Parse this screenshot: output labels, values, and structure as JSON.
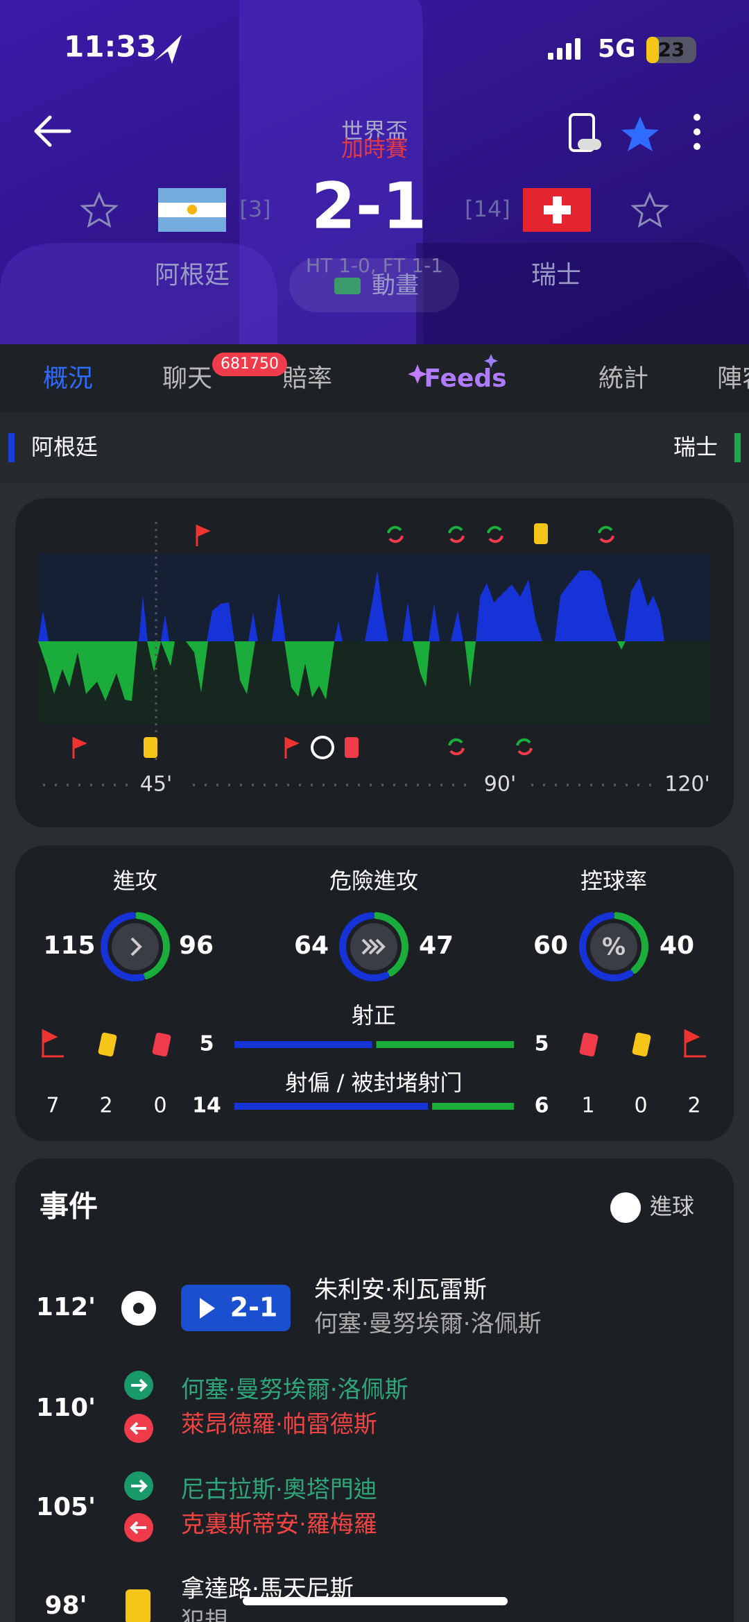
{
  "status_bar": {
    "time": "11:33",
    "network": "5G",
    "battery": "23"
  },
  "header": {
    "competition": "世界盃",
    "stage": "加時賽",
    "home_team": "阿根廷",
    "home_rank": "[3]",
    "score": "2-1",
    "away_rank": "[14]",
    "away_team": "瑞士",
    "result_detail": "HT 1-0, FT 1-1",
    "animation": "動畫"
  },
  "tabs": [
    "概況",
    "聊天",
    "賠率",
    "Feeds",
    "統計",
    "陣容"
  ],
  "chat_badge": "681750",
  "team_bar": {
    "home": "阿根廷",
    "away": "瑞士"
  },
  "timeline": {
    "marks": [
      "45'",
      "90'",
      "120'"
    ]
  },
  "stats": {
    "attack": {
      "label": "進攻",
      "home": 115,
      "away": 96
    },
    "dangerous_attack": {
      "label": "危險進攻",
      "home": 64,
      "away": 47
    },
    "possession": {
      "label": "控球率",
      "icon": "%",
      "home": 60,
      "away": 40
    },
    "shots_on_target": {
      "label": "射正",
      "home": 5,
      "away": 5
    },
    "shots_off_target": {
      "label": "射偏 / 被封堵射门",
      "home": 14,
      "away": 6
    },
    "home_corners": 7,
    "home_yellow": 2,
    "home_red": 0,
    "away_red": 1,
    "away_yellow": 0,
    "away_corners": 2
  },
  "events": {
    "title": "事件",
    "legend": "進球",
    "items": [
      {
        "minute": "112'",
        "score": "2-1",
        "player": "朱利安·利瓦雷斯",
        "assist": "何塞·曼努埃爾·洛佩斯"
      },
      {
        "minute": "110'",
        "player_in": "何塞·曼努埃爾·洛佩斯",
        "player_out": "萊昂德羅·帕雷德斯"
      },
      {
        "minute": "105'",
        "player_in": "尼古拉斯·奧塔門迪",
        "player_out": "克裏斯蒂安·羅梅羅"
      },
      {
        "minute": "98'",
        "player": "拿達路·馬天尼斯",
        "note": "犯規"
      }
    ]
  }
}
